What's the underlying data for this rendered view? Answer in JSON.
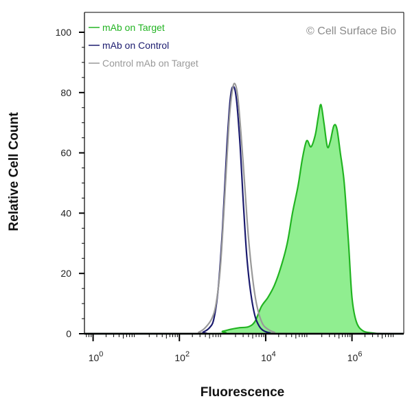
{
  "chart_data": {
    "type": "area",
    "watermark": "© Cell Surface Bio",
    "xlabel": "Fluorescence",
    "ylabel": "Relative Cell Count",
    "xscale": "log",
    "xlim_log10": [
      -0.2,
      7.2
    ],
    "ylim": [
      0,
      100
    ],
    "y_ticks": [
      0,
      20,
      40,
      60,
      80,
      100
    ],
    "x_ticks": [
      {
        "base": "10",
        "exp": "0",
        "log10": 0
      },
      {
        "base": "10",
        "exp": "2",
        "log10": 2
      },
      {
        "base": "10",
        "exp": "4",
        "log10": 4
      },
      {
        "base": "10",
        "exp": "6",
        "log10": 6
      }
    ],
    "legend_position": "top-left",
    "grid": false,
    "series": [
      {
        "name": "mAb on Target",
        "color": "#22b422",
        "fill": "#90ee90",
        "filled": true,
        "x_log10": [
          -0.2,
          2.8,
          3.0,
          3.2,
          3.4,
          3.6,
          3.75,
          3.9,
          4.05,
          4.2,
          4.35,
          4.5,
          4.62,
          4.75,
          4.85,
          4.95,
          5.05,
          5.15,
          5.22,
          5.28,
          5.35,
          5.43,
          5.5,
          5.58,
          5.65,
          5.73,
          5.82,
          5.92,
          6.0,
          6.1,
          6.25,
          6.45,
          6.7,
          7.2
        ],
        "y": [
          0,
          0,
          0.8,
          1.5,
          2.0,
          2.3,
          4,
          9,
          12,
          16,
          22,
          30,
          40,
          49,
          58,
          64,
          62,
          66,
          72,
          76,
          70,
          62,
          64,
          69,
          68,
          60,
          50,
          30,
          12,
          4,
          1,
          0.3,
          0,
          0
        ]
      },
      {
        "name": "mAb on Control",
        "color": "#1a1a6e",
        "filled": false,
        "x_log10": [
          -0.2,
          2.4,
          2.55,
          2.7,
          2.8,
          2.9,
          3.0,
          3.1,
          3.18,
          3.25,
          3.32,
          3.4,
          3.48,
          3.56,
          3.65,
          3.75,
          3.85,
          3.95,
          4.1,
          4.3,
          7.2
        ],
        "y": [
          0,
          0,
          0.5,
          2,
          5,
          15,
          35,
          62,
          78,
          82,
          78,
          64,
          44,
          26,
          14,
          6,
          2.5,
          1,
          0.3,
          0,
          0
        ]
      },
      {
        "name": "Control mAb on Target",
        "color": "#999999",
        "filled": false,
        "x_log10": [
          -0.2,
          2.3,
          2.45,
          2.6,
          2.75,
          2.85,
          2.95,
          3.05,
          3.15,
          3.22,
          3.28,
          3.35,
          3.43,
          3.52,
          3.6,
          3.7,
          3.8,
          3.92,
          4.05,
          4.2,
          4.4,
          7.2
        ],
        "y": [
          0,
          0,
          0.5,
          2,
          5,
          10,
          22,
          45,
          70,
          80,
          83,
          79,
          66,
          48,
          32,
          18,
          9,
          3.5,
          1.5,
          0.5,
          0,
          0
        ]
      }
    ]
  }
}
